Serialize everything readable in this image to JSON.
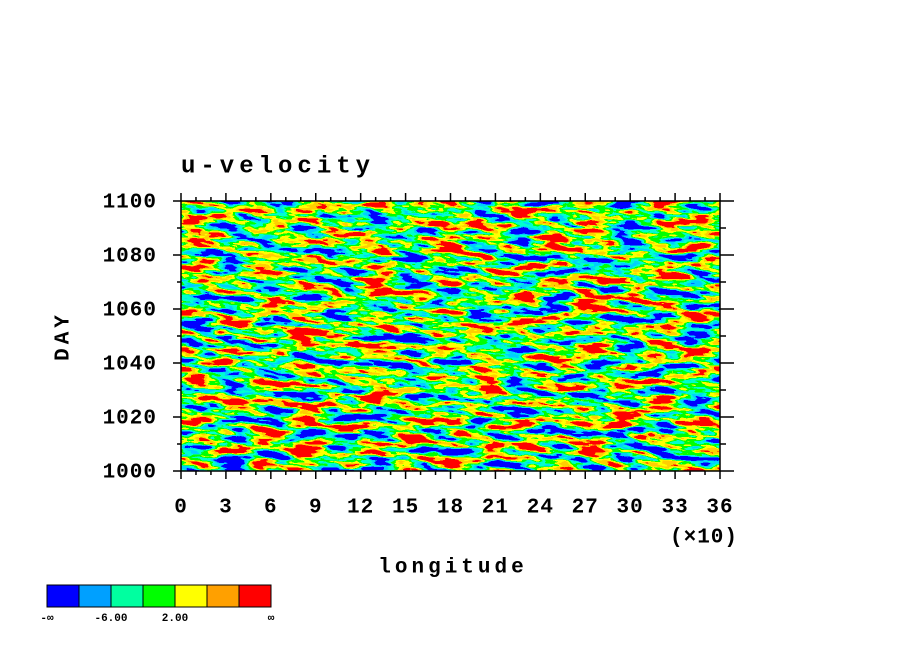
{
  "chart_data": {
    "type": "hovmoller",
    "title": "u-velocity",
    "x_label": "longitude",
    "y_label": "DAY",
    "x_scale_note": "(×10)",
    "xlim": [
      0,
      36
    ],
    "xticks": [
      0,
      3,
      6,
      9,
      12,
      15,
      18,
      21,
      24,
      27,
      30,
      33,
      36
    ],
    "ylim": [
      1000,
      1100
    ],
    "yticks": [
      1000,
      1020,
      1040,
      1060,
      1080,
      1100
    ],
    "colorbar": {
      "colors": [
        "#0000ff",
        "#00a0ff",
        "#00ffa0",
        "#00ff00",
        "#ffff00",
        "#ffa000",
        "#ff0000"
      ],
      "low_label": "-∞",
      "high_label": "∞",
      "levels": [
        {
          "value": -6,
          "label": "-6.00"
        },
        {
          "value": 2,
          "label": "2.00"
        }
      ]
    }
  }
}
